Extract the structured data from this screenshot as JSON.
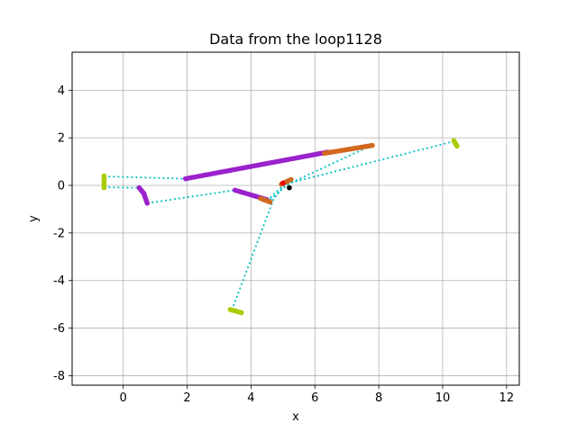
{
  "chart_data": {
    "type": "scatter",
    "title": "Data from the loop1128",
    "xlabel": "x",
    "ylabel": "y",
    "xlim": [
      -1.6,
      12.4
    ],
    "ylim": [
      -8.4,
      5.6
    ],
    "xticks": [
      0,
      2,
      4,
      6,
      8,
      10,
      12
    ],
    "yticks": [
      -8,
      -6,
      -4,
      -2,
      0,
      2,
      4
    ],
    "grid": true,
    "colors": {
      "magenta_points": "#9b22cc",
      "orange_points": "#d2691e",
      "olive_points": "#aacc00",
      "dotted_path": "#00bfc4",
      "red_point": "#ee0000",
      "black_point": "#000000",
      "grid": "#b0b0b0"
    },
    "paths": [
      {
        "style": "dotted",
        "points": [
          [
            -0.6,
            0.38
          ],
          [
            1.95,
            0.28
          ]
        ]
      },
      {
        "style": "dotted",
        "points": [
          [
            -0.6,
            -0.08
          ],
          [
            0.5,
            -0.1
          ]
        ]
      },
      {
        "style": "dotted",
        "points": [
          [
            0.75,
            -0.75
          ],
          [
            3.5,
            -0.2
          ]
        ]
      },
      {
        "style": "dotted",
        "points": [
          [
            3.4,
            -5.25
          ],
          [
            4.7,
            -0.6
          ],
          [
            5.0,
            -0.05
          ],
          [
            7.8,
            1.7
          ]
        ]
      },
      {
        "style": "dotted",
        "points": [
          [
            4.6,
            -0.6
          ],
          [
            5.2,
            0.1
          ],
          [
            10.35,
            1.85
          ]
        ]
      },
      {
        "style": "dotted",
        "points": [
          [
            4.5,
            -0.65
          ],
          [
            5.0,
            0.0
          ]
        ]
      }
    ],
    "series": [
      {
        "color": "magenta",
        "segments": [
          {
            "from": [
              1.95,
              0.28
            ],
            "to": [
              6.4,
              1.4
            ],
            "n": 70
          },
          {
            "from": [
              0.5,
              -0.1
            ],
            "to": [
              0.65,
              -0.35
            ],
            "n": 6
          },
          {
            "from": [
              0.65,
              -0.35
            ],
            "to": [
              0.75,
              -0.75
            ],
            "n": 6
          },
          {
            "from": [
              3.5,
              -0.2
            ],
            "to": [
              4.5,
              -0.6
            ],
            "n": 16
          }
        ]
      },
      {
        "color": "orange",
        "segments": [
          {
            "from": [
              6.3,
              1.35
            ],
            "to": [
              7.8,
              1.68
            ],
            "n": 26
          },
          {
            "from": [
              4.3,
              -0.55
            ],
            "to": [
              4.6,
              -0.7
            ],
            "n": 6
          },
          {
            "from": [
              4.95,
              0.05
            ],
            "to": [
              5.25,
              0.25
            ],
            "n": 6
          }
        ]
      },
      {
        "color": "olive",
        "segments": [
          {
            "from": [
              -0.6,
              0.4
            ],
            "to": [
              -0.6,
              -0.1
            ],
            "n": 8
          },
          {
            "from": [
              3.35,
              -5.22
            ],
            "to": [
              3.7,
              -5.35
            ],
            "n": 8
          },
          {
            "from": [
              10.35,
              1.88
            ],
            "to": [
              10.45,
              1.65
            ],
            "n": 6
          }
        ]
      },
      {
        "color": "red",
        "segments": [
          {
            "from": [
              5.0,
              0.1
            ],
            "to": [
              5.0,
              0.1
            ],
            "n": 1
          }
        ]
      },
      {
        "color": "black",
        "segments": [
          {
            "from": [
              5.2,
              -0.1
            ],
            "to": [
              5.2,
              -0.1
            ],
            "n": 1
          }
        ]
      }
    ]
  }
}
